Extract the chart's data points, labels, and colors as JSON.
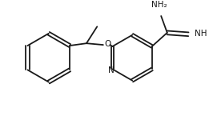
{
  "background_color": "#ffffff",
  "line_color": "#1a1a1a",
  "line_width": 1.3,
  "font_size": 7.5,
  "figsize": [
    2.61,
    1.5
  ],
  "dpi": 100,
  "xlim": [
    0,
    261
  ],
  "ylim": [
    0,
    150
  ]
}
